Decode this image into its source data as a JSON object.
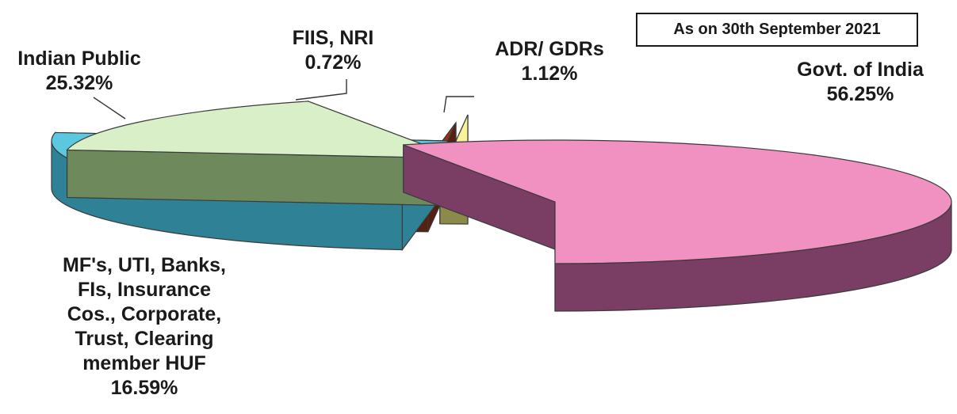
{
  "note": "As on 30th September 2021",
  "chart_data": {
    "type": "pie",
    "categories": [
      "Govt. of India",
      "MF's, UTI, Banks, FIs, Insurance Cos., Corporate, Trust, Clearing member HUF",
      "Indian Public",
      "FIIS, NRI",
      "ADR/ GDRs"
    ],
    "values": [
      56.25,
      16.59,
      25.32,
      0.72,
      1.12
    ],
    "colors": [
      "#f191c1",
      "#d9efc7",
      "#5cc8e0",
      "#9c2e14",
      "#f8f29a"
    ],
    "side_colors": [
      "#7a3d64",
      "#6e8a5c",
      "#2f8296",
      "#55200f",
      "#8c8a4a"
    ]
  },
  "labels": {
    "govt": [
      "Govt. of India",
      "56.25%"
    ],
    "mf": [
      "MF's, UTI, Banks,",
      "FIs, Insurance",
      "Cos., Corporate,",
      "Trust, Clearing",
      "member HUF",
      "16.59%"
    ],
    "indian_public": [
      "Indian Public",
      "25.32%"
    ],
    "fiis": [
      "FIIS, NRI",
      "0.72%"
    ],
    "adr": [
      "ADR/ GDRs",
      "1.12%"
    ]
  }
}
